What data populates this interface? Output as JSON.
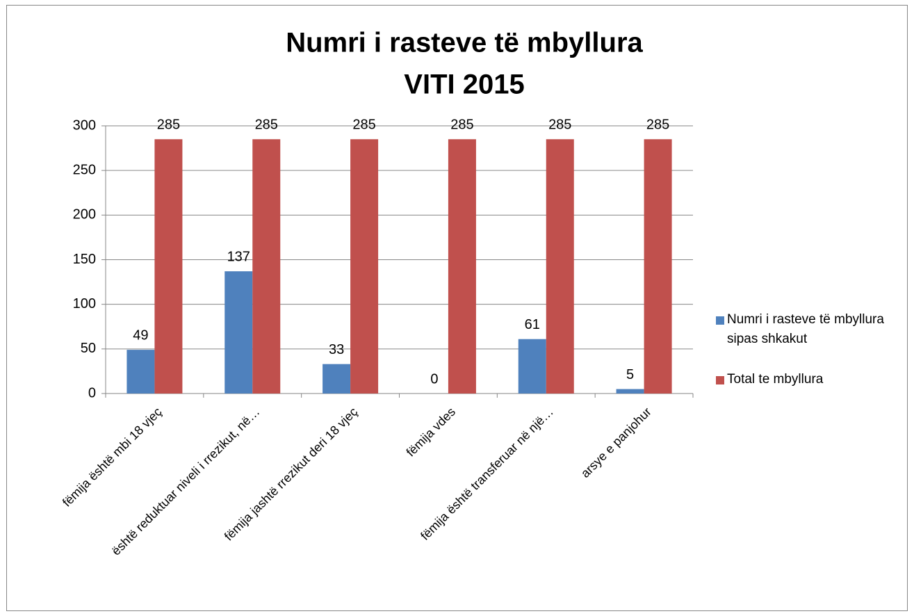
{
  "chart_data": {
    "type": "bar",
    "title": [
      "Numri i rasteve të mbyllura",
      "VITI 2015"
    ],
    "categories": [
      "fëmija është mbi 18 vjeç",
      "është reduktuar niveli i rrezikut, në…",
      "fëmija jashtë rrezikut deri 18 vjeç",
      "fëmija vdes",
      "fëmija është transferuar në një…",
      "arsye e panjohur"
    ],
    "series": [
      {
        "name": "Numri i rasteve të mbyllura sipas shkakut",
        "color": "#4f81bd",
        "values": [
          49,
          137,
          33,
          0,
          61,
          5
        ]
      },
      {
        "name": "Total te mbyllura",
        "color": "#c0504d",
        "values": [
          285,
          285,
          285,
          285,
          285,
          285
        ]
      }
    ],
    "ylim": [
      0,
      300
    ],
    "yticks": [
      0,
      50,
      100,
      150,
      200,
      250,
      300
    ],
    "grid": true,
    "legend": "right"
  }
}
